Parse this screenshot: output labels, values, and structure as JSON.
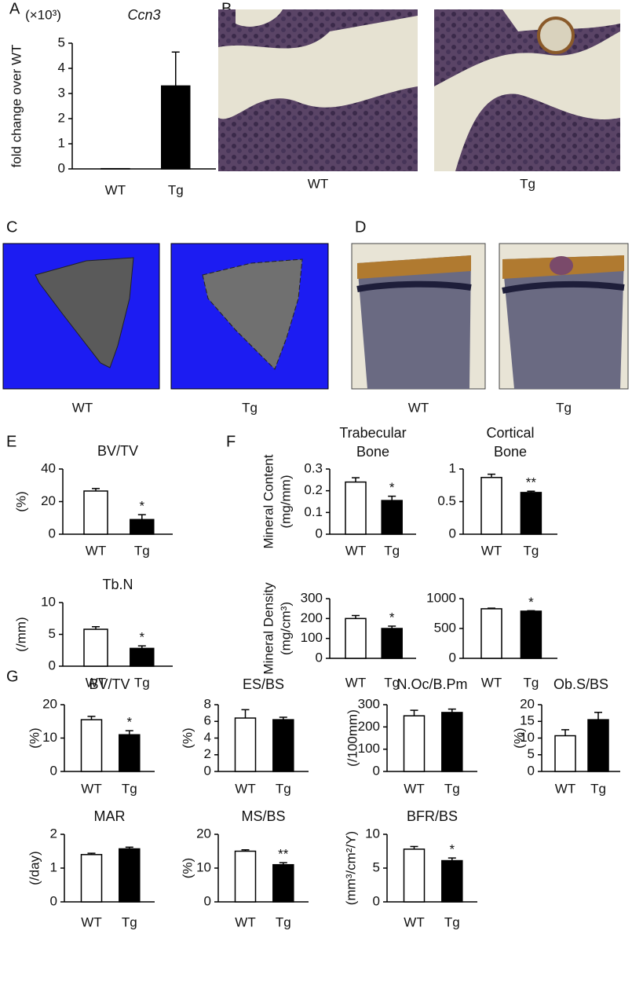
{
  "panels": [
    "A",
    "B",
    "C",
    "D",
    "E",
    "F",
    "G"
  ],
  "images": [
    {
      "labels": [
        "WT",
        "Tg"
      ]
    },
    {
      "labels": [
        "WT",
        "Tg"
      ]
    },
    {
      "labels": [
        "WT",
        "Tg"
      ]
    }
  ],
  "chart_data": [
    {
      "type": "bar",
      "title": "Ccn3",
      "scale_label": "(×10³)",
      "ylabel": [
        "fold change over WT"
      ],
      "categories": [
        "WT",
        "Tg"
      ],
      "values": [
        0.01,
        3.3
      ],
      "errors": [
        0,
        1.35
      ],
      "colors": [
        "#ffffff",
        "#000000"
      ],
      "ylim": [
        0,
        5
      ],
      "yticks": [
        0,
        1,
        2,
        3,
        4,
        5
      ]
    },
    {
      "type": "bar",
      "title": [
        "BV/TV"
      ],
      "ylabel": [
        "(%)"
      ],
      "categories": [
        "WT",
        "Tg"
      ],
      "values": [
        26.5,
        9
      ],
      "errors": [
        1.5,
        3
      ],
      "colors": [
        "#ffffff",
        "#000000"
      ],
      "ylim": [
        0,
        40
      ],
      "yticks": [
        0,
        20,
        40
      ],
      "annotations": [
        {
          "category": 1,
          "text": "*"
        }
      ]
    },
    {
      "type": "bar",
      "title": [
        "Tb.N"
      ],
      "ylabel": [
        "(/mm)"
      ],
      "categories": [
        "WT",
        "Tg"
      ],
      "values": [
        5.8,
        2.8
      ],
      "errors": [
        0.4,
        0.4
      ],
      "colors": [
        "#ffffff",
        "#000000"
      ],
      "ylim": [
        0,
        10
      ],
      "yticks": [
        0,
        5,
        10
      ],
      "annotations": [
        {
          "category": 1,
          "text": "*"
        }
      ]
    },
    {
      "type": "bar",
      "title": [
        "Trabecular",
        "Bone"
      ],
      "ylabel": [
        "Mineral Content",
        "(mg/mm)"
      ],
      "categories": [
        "WT",
        "Tg"
      ],
      "values": [
        0.24,
        0.155
      ],
      "errors": [
        0.02,
        0.02
      ],
      "colors": [
        "#ffffff",
        "#000000"
      ],
      "ylim": [
        0,
        0.3
      ],
      "yticks": [
        0,
        0.1,
        0.2,
        0.3
      ],
      "annotations": [
        {
          "category": 1,
          "text": "*"
        }
      ]
    },
    {
      "type": "bar",
      "title": [
        "Cortical",
        "Bone"
      ],
      "categories": [
        "WT",
        "Tg"
      ],
      "values": [
        0.87,
        0.64
      ],
      "errors": [
        0.05,
        0.02
      ],
      "colors": [
        "#ffffff",
        "#000000"
      ],
      "ylim": [
        0,
        1
      ],
      "yticks": [
        0,
        0.5,
        1
      ],
      "annotations": [
        {
          "category": 1,
          "text": "**"
        }
      ]
    },
    {
      "type": "bar",
      "ylabel": [
        "Mineral Density",
        "(mg/cm³)"
      ],
      "categories": [
        "WT",
        "Tg"
      ],
      "values": [
        200,
        150
      ],
      "errors": [
        15,
        12
      ],
      "colors": [
        "#ffffff",
        "#000000"
      ],
      "ylim": [
        0,
        300
      ],
      "yticks": [
        0,
        100,
        200,
        300
      ],
      "annotations": [
        {
          "category": 1,
          "text": "*"
        }
      ]
    },
    {
      "type": "bar",
      "categories": [
        "WT",
        "Tg"
      ],
      "values": [
        830,
        790
      ],
      "errors": [
        10,
        8
      ],
      "colors": [
        "#ffffff",
        "#000000"
      ],
      "ylim": [
        0,
        1000
      ],
      "yticks": [
        0,
        500,
        1000
      ],
      "annotations": [
        {
          "category": 1,
          "text": "*"
        }
      ]
    },
    {
      "type": "bar",
      "title": [
        "BV/TV"
      ],
      "ylabel": [
        "(%)"
      ],
      "categories": [
        "WT",
        "Tg"
      ],
      "values": [
        15.5,
        11
      ],
      "errors": [
        1,
        1.2
      ],
      "colors": [
        "#ffffff",
        "#000000"
      ],
      "ylim": [
        0,
        20
      ],
      "yticks": [
        0,
        10,
        20
      ],
      "annotations": [
        {
          "category": 1,
          "text": "*"
        }
      ]
    },
    {
      "type": "bar",
      "title": [
        "ES/BS"
      ],
      "ylabel": [
        "(%)"
      ],
      "categories": [
        "WT",
        "Tg"
      ],
      "values": [
        6.4,
        6.2
      ],
      "errors": [
        1,
        0.3
      ],
      "colors": [
        "#ffffff",
        "#000000"
      ],
      "ylim": [
        0,
        8
      ],
      "yticks": [
        0,
        2,
        4,
        6,
        8
      ]
    },
    {
      "type": "bar",
      "title": [
        "N.Oc/B.Pm"
      ],
      "ylabel": [
        "(/100mm)"
      ],
      "categories": [
        "WT",
        "Tg"
      ],
      "values": [
        250,
        265
      ],
      "errors": [
        25,
        15
      ],
      "colors": [
        "#ffffff",
        "#000000"
      ],
      "ylim": [
        0,
        300
      ],
      "yticks": [
        0,
        100,
        200,
        300
      ]
    },
    {
      "type": "bar",
      "title": [
        "Ob.S/BS"
      ],
      "ylabel": [
        "(%)"
      ],
      "categories": [
        "WT",
        "Tg"
      ],
      "values": [
        10.7,
        15.5
      ],
      "errors": [
        1.8,
        2.2
      ],
      "colors": [
        "#ffffff",
        "#000000"
      ],
      "ylim": [
        0,
        20
      ],
      "yticks": [
        0,
        5,
        10,
        15,
        20
      ]
    },
    {
      "type": "bar",
      "title": [
        "MAR"
      ],
      "ylabel": [
        "(/day)"
      ],
      "categories": [
        "WT",
        "Tg"
      ],
      "values": [
        1.4,
        1.57
      ],
      "errors": [
        0.04,
        0.05
      ],
      "colors": [
        "#ffffff",
        "#000000"
      ],
      "ylim": [
        0,
        2
      ],
      "yticks": [
        0,
        1,
        2
      ]
    },
    {
      "type": "bar",
      "title": [
        "MS/BS"
      ],
      "ylabel": [
        "(%)"
      ],
      "categories": [
        "WT",
        "Tg"
      ],
      "values": [
        15,
        11
      ],
      "errors": [
        0.4,
        0.6
      ],
      "colors": [
        "#ffffff",
        "#000000"
      ],
      "ylim": [
        0,
        20
      ],
      "yticks": [
        0,
        10,
        20
      ],
      "annotations": [
        {
          "category": 1,
          "text": "**"
        }
      ]
    },
    {
      "type": "bar",
      "title": [
        "BFR/BS"
      ],
      "ylabel": [
        "(mm³/cm²/Y)"
      ],
      "categories": [
        "WT",
        "Tg"
      ],
      "values": [
        7.8,
        6.1
      ],
      "errors": [
        0.4,
        0.4
      ],
      "colors": [
        "#ffffff",
        "#000000"
      ],
      "ylim": [
        0,
        10
      ],
      "yticks": [
        0,
        5,
        10
      ],
      "annotations": [
        {
          "category": 1,
          "text": "*"
        }
      ]
    }
  ]
}
